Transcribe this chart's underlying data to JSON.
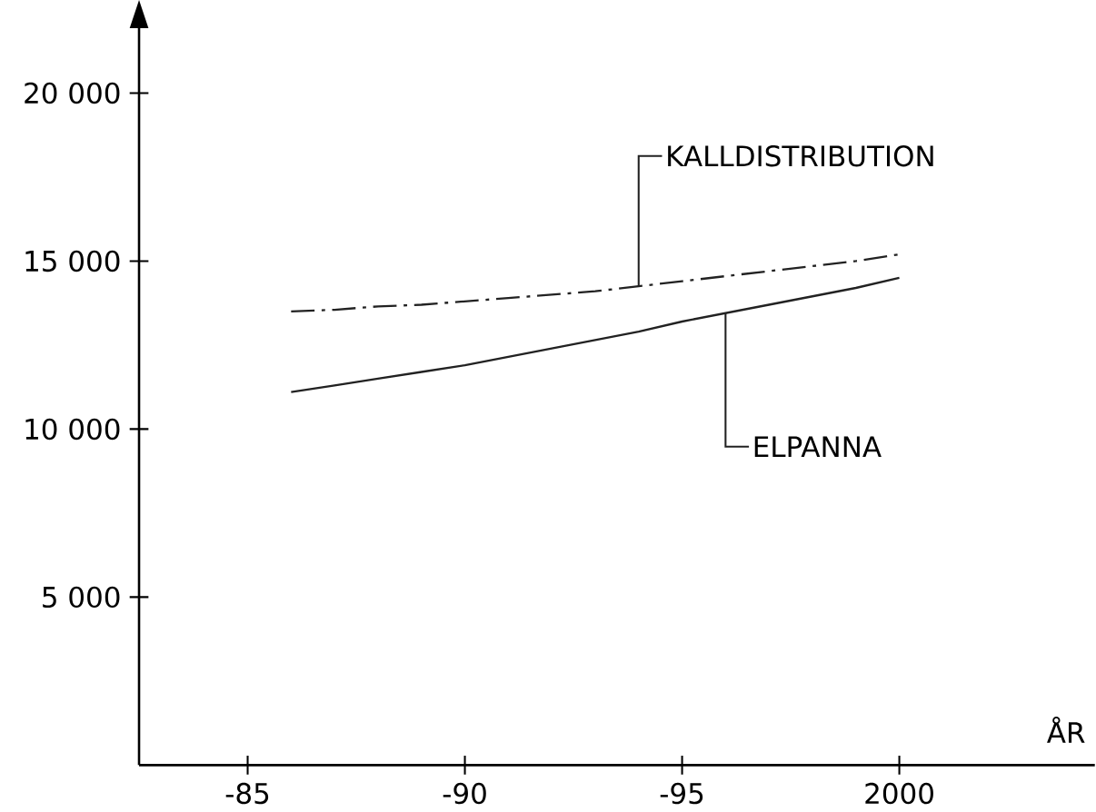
{
  "chart_data": {
    "type": "line",
    "xlabel": "ÅR",
    "ylim": [
      0,
      22000
    ],
    "categories": [
      null,
      null,
      "-85",
      null,
      null,
      null,
      null,
      "-90",
      null,
      null,
      null,
      null,
      "-95",
      null,
      null,
      null,
      null,
      "2000",
      null,
      null,
      null,
      null
    ],
    "yticks": [
      {
        "value": 5000,
        "label": "5 000"
      },
      {
        "value": 10000,
        "label": "10 000"
      },
      {
        "value": 15000,
        "label": "15 000"
      },
      {
        "value": 20000,
        "label": "20 000"
      }
    ],
    "grid": false,
    "legend": false,
    "marker": "none",
    "series": [
      {
        "name": "KALLDISTRIBUTION",
        "color": "#222222",
        "line_style": "dashdot",
        "values": [
          null,
          null,
          null,
          13500,
          13550,
          13650,
          13700,
          13800,
          13900,
          14000,
          14100,
          14250,
          14400,
          14550,
          14700,
          14850,
          15000,
          15200,
          null,
          null,
          null,
          null
        ]
      },
      {
        "name": "ELPANNA",
        "color": "#222222",
        "line_style": "solid",
        "values": [
          null,
          null,
          null,
          11100,
          11300,
          11500,
          11700,
          11900,
          12150,
          12400,
          12650,
          12900,
          13200,
          13450,
          13700,
          13950,
          14200,
          14500,
          null,
          null,
          null,
          null
        ]
      }
    ]
  }
}
